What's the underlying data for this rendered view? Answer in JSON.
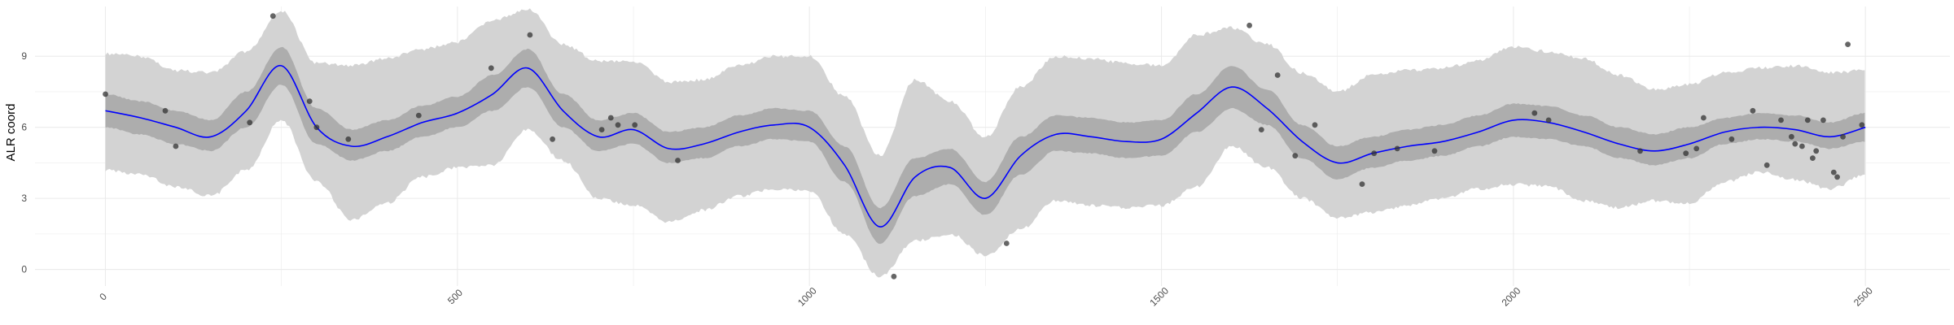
{
  "chart_data": {
    "type": "line",
    "title": "",
    "xlabel": "",
    "ylabel": "ALR coord",
    "xlim": [
      -100,
      2620
    ],
    "ylim": [
      -0.7,
      11.1
    ],
    "x_ticks": [
      0,
      500,
      1000,
      1500,
      2000,
      2500
    ],
    "x_tick_labels": [
      "0",
      "500",
      "1000",
      "1500",
      "2000",
      "2500"
    ],
    "y_ticks": [
      0,
      3,
      6,
      9
    ],
    "y_tick_labels": [
      "0",
      "3",
      "6",
      "9"
    ],
    "x_tick_rotation": 45,
    "grid": true,
    "legend": "none",
    "colors": {
      "mean_line": "#0000ff",
      "inner_band": "#adadad",
      "outer_band": "#d3d3d3",
      "points": "#333333",
      "grid": "#ebebeb"
    },
    "series": [
      {
        "kind": "mean",
        "x": [
          0,
          50,
          100,
          150,
          200,
          250,
          300,
          350,
          400,
          450,
          500,
          550,
          600,
          650,
          700,
          750,
          800,
          850,
          900,
          950,
          1000,
          1050,
          1100,
          1150,
          1200,
          1250,
          1300,
          1350,
          1400,
          1450,
          1500,
          1550,
          1600,
          1650,
          1700,
          1750,
          1800,
          1850,
          1900,
          1950,
          2000,
          2050,
          2100,
          2150,
          2200,
          2250,
          2300,
          2350,
          2400,
          2450,
          2500
        ],
        "y": [
          6.7,
          6.4,
          6.0,
          5.6,
          6.7,
          8.6,
          6.0,
          5.2,
          5.6,
          6.2,
          6.6,
          7.4,
          8.5,
          6.7,
          5.6,
          5.9,
          5.1,
          5.3,
          5.8,
          6.1,
          6.0,
          4.4,
          1.8,
          3.9,
          4.3,
          3.0,
          4.8,
          5.7,
          5.6,
          5.4,
          5.5,
          6.6,
          7.7,
          6.8,
          5.4,
          4.5,
          4.9,
          5.2,
          5.4,
          5.8,
          6.3,
          6.2,
          5.8,
          5.3,
          5.0,
          5.3,
          5.8,
          6.0,
          5.9,
          5.6,
          6.0
        ]
      },
      {
        "kind": "inner-band",
        "lower": [
          6.0,
          5.7,
          5.3,
          5.0,
          6.0,
          7.8,
          5.3,
          4.6,
          5.0,
          5.6,
          6.0,
          6.7,
          7.7,
          6.0,
          5.0,
          5.3,
          4.5,
          4.7,
          5.2,
          5.5,
          5.4,
          3.7,
          1.1,
          3.1,
          3.6,
          2.3,
          4.0,
          5.0,
          4.9,
          4.7,
          4.8,
          5.8,
          6.8,
          6.1,
          4.7,
          3.8,
          4.3,
          4.6,
          4.8,
          5.2,
          5.6,
          5.5,
          5.2,
          4.7,
          4.4,
          4.7,
          5.3,
          5.5,
          5.4,
          5.1,
          5.4
        ],
        "upper": [
          7.4,
          7.1,
          6.7,
          6.3,
          7.5,
          9.4,
          6.8,
          5.9,
          6.3,
          6.9,
          7.3,
          8.2,
          9.3,
          7.4,
          6.3,
          6.6,
          5.8,
          6.0,
          6.5,
          6.8,
          6.7,
          5.2,
          2.6,
          4.7,
          5.1,
          3.7,
          5.6,
          6.5,
          6.4,
          6.2,
          6.3,
          7.4,
          8.6,
          7.6,
          6.1,
          5.2,
          5.6,
          5.9,
          6.1,
          6.5,
          7.0,
          6.9,
          6.5,
          6.0,
          5.7,
          6.0,
          6.4,
          6.6,
          6.5,
          6.2,
          6.6
        ]
      },
      {
        "kind": "outer-band",
        "lower": [
          4.2,
          4.0,
          3.5,
          3.1,
          4.2,
          6.3,
          3.7,
          2.1,
          2.8,
          3.9,
          4.3,
          4.4,
          5.9,
          4.6,
          3.0,
          2.7,
          2.0,
          2.5,
          3.1,
          3.4,
          3.3,
          1.5,
          -0.3,
          1.2,
          1.5,
          0.6,
          1.7,
          2.9,
          2.7,
          2.6,
          2.7,
          3.5,
          5.2,
          4.3,
          3.0,
          2.2,
          2.4,
          2.7,
          3.0,
          3.4,
          3.6,
          3.5,
          2.9,
          2.6,
          2.9,
          2.8,
          3.7,
          4.1,
          3.8,
          3.4,
          4.0
        ],
        "upper": [
          9.1,
          9.0,
          8.4,
          8.3,
          9.2,
          10.9,
          8.7,
          8.6,
          8.9,
          9.3,
          9.6,
          10.5,
          11.0,
          9.5,
          8.8,
          8.8,
          7.9,
          8.0,
          8.6,
          9.0,
          9.0,
          7.3,
          4.8,
          8.0,
          7.1,
          5.6,
          7.7,
          9.0,
          8.9,
          8.7,
          8.6,
          9.9,
          10.2,
          9.5,
          8.3,
          7.5,
          8.2,
          8.4,
          8.5,
          8.8,
          9.4,
          9.2,
          8.9,
          8.2,
          7.6,
          7.8,
          8.3,
          8.5,
          8.6,
          8.3,
          8.4
        ]
      },
      {
        "kind": "points",
        "x": [
          0,
          85,
          100,
          205,
          238,
          290,
          300,
          345,
          445,
          548,
          603,
          635,
          705,
          718,
          728,
          752,
          813,
          1120,
          1280,
          1625,
          1642,
          1665,
          1690,
          1718,
          1785,
          1802,
          1835,
          1888,
          2030,
          2050,
          2180,
          2245,
          2260,
          2270,
          2310,
          2340,
          2360,
          2380,
          2395,
          2400,
          2410,
          2418,
          2425,
          2430,
          2440,
          2455,
          2460,
          2468,
          2475,
          2495
        ],
        "y": [
          7.4,
          6.7,
          5.2,
          6.2,
          10.7,
          7.1,
          6.0,
          5.5,
          6.5,
          8.5,
          9.9,
          5.5,
          5.9,
          6.4,
          6.1,
          6.1,
          4.6,
          -0.3,
          1.1,
          10.3,
          5.9,
          8.2,
          4.8,
          6.1,
          3.6,
          4.9,
          5.1,
          5.0,
          6.6,
          6.3,
          5.0,
          4.9,
          5.1,
          6.4,
          5.5,
          6.7,
          4.4,
          6.3,
          5.6,
          5.3,
          5.2,
          6.3,
          4.7,
          5.0,
          6.3,
          4.1,
          3.9,
          5.6,
          9.5,
          6.1
        ]
      }
    ]
  }
}
